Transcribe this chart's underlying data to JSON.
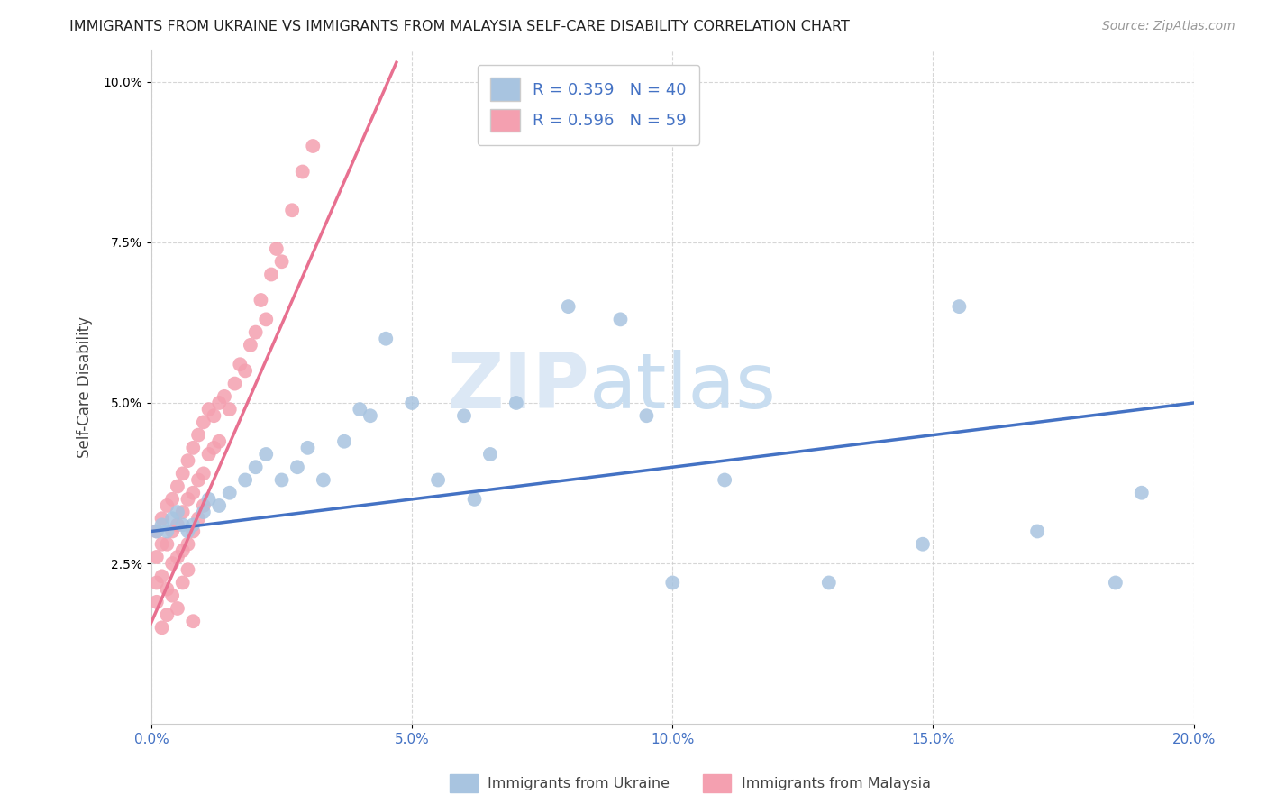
{
  "title": "IMMIGRANTS FROM UKRAINE VS IMMIGRANTS FROM MALAYSIA SELF-CARE DISABILITY CORRELATION CHART",
  "source": "Source: ZipAtlas.com",
  "ylabel": "Self-Care Disability",
  "xlim": [
    0.0,
    0.2
  ],
  "ylim": [
    0.0,
    0.105
  ],
  "ukraine_color": "#a8c4e0",
  "malaysia_color": "#f4a0b0",
  "ukraine_line_color": "#4472c4",
  "malaysia_line_color": "#e87090",
  "watermark_zip": "ZIP",
  "watermark_atlas": "atlas",
  "legend_ukraine_R": "R = 0.359",
  "legend_ukraine_N": "N = 40",
  "legend_malaysia_R": "R = 0.596",
  "legend_malaysia_N": "N = 59",
  "ukraine_line_x": [
    0.0,
    0.2
  ],
  "ukraine_line_y": [
    0.03,
    0.05
  ],
  "malaysia_line_x": [
    -0.001,
    0.047
  ],
  "malaysia_line_y": [
    0.014,
    0.103
  ],
  "ukraine_x": [
    0.001,
    0.002,
    0.003,
    0.004,
    0.005,
    0.006,
    0.007,
    0.008,
    0.01,
    0.011,
    0.013,
    0.015,
    0.018,
    0.02,
    0.022,
    0.025,
    0.028,
    0.03,
    0.033,
    0.037,
    0.04,
    0.042,
    0.045,
    0.05,
    0.055,
    0.06,
    0.065,
    0.07,
    0.08,
    0.09,
    0.095,
    0.1,
    0.11,
    0.13,
    0.148,
    0.155,
    0.17,
    0.185,
    0.19,
    0.062
  ],
  "ukraine_y": [
    0.03,
    0.031,
    0.03,
    0.032,
    0.033,
    0.031,
    0.03,
    0.031,
    0.033,
    0.035,
    0.034,
    0.036,
    0.038,
    0.04,
    0.042,
    0.038,
    0.04,
    0.043,
    0.038,
    0.044,
    0.049,
    0.048,
    0.06,
    0.05,
    0.038,
    0.048,
    0.042,
    0.05,
    0.065,
    0.063,
    0.048,
    0.022,
    0.038,
    0.022,
    0.028,
    0.065,
    0.03,
    0.022,
    0.036,
    0.035
  ],
  "malaysia_x": [
    0.001,
    0.001,
    0.001,
    0.002,
    0.002,
    0.002,
    0.003,
    0.003,
    0.003,
    0.004,
    0.004,
    0.004,
    0.005,
    0.005,
    0.005,
    0.006,
    0.006,
    0.006,
    0.007,
    0.007,
    0.007,
    0.008,
    0.008,
    0.008,
    0.009,
    0.009,
    0.009,
    0.01,
    0.01,
    0.01,
    0.011,
    0.011,
    0.012,
    0.012,
    0.013,
    0.013,
    0.014,
    0.015,
    0.016,
    0.017,
    0.018,
    0.019,
    0.02,
    0.021,
    0.022,
    0.023,
    0.024,
    0.025,
    0.027,
    0.029,
    0.031,
    0.001,
    0.002,
    0.003,
    0.004,
    0.005,
    0.006,
    0.007,
    0.008
  ],
  "malaysia_y": [
    0.03,
    0.026,
    0.022,
    0.032,
    0.028,
    0.023,
    0.034,
    0.028,
    0.021,
    0.035,
    0.03,
    0.025,
    0.037,
    0.031,
    0.026,
    0.039,
    0.033,
    0.027,
    0.041,
    0.035,
    0.028,
    0.043,
    0.036,
    0.03,
    0.045,
    0.038,
    0.032,
    0.047,
    0.039,
    0.034,
    0.049,
    0.042,
    0.048,
    0.043,
    0.05,
    0.044,
    0.051,
    0.049,
    0.053,
    0.056,
    0.055,
    0.059,
    0.061,
    0.066,
    0.063,
    0.07,
    0.074,
    0.072,
    0.08,
    0.086,
    0.09,
    0.019,
    0.015,
    0.017,
    0.02,
    0.018,
    0.022,
    0.024,
    0.016
  ]
}
